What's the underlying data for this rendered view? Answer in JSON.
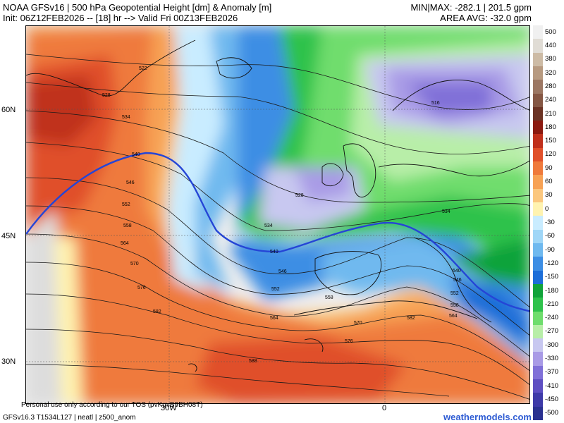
{
  "header": {
    "title": "NOAA GFSv16 | 500 hPa Geopotential Height [dm] & Anomaly [m]",
    "init": "Init: 06Z12FEB2026 -- [18] hr --> Valid Fri 00Z13FEB2026",
    "minmax": "MIN|MAX: -282.1 | 201.5 gpm",
    "area_avg": "AREA AVG: -32.0 gpm"
  },
  "axes": {
    "lat_labels": [
      "60N",
      "45N",
      "30N"
    ],
    "lon_labels": [
      "30W",
      "0"
    ]
  },
  "contour_labels": [
    "522",
    "528",
    "534",
    "540",
    "546",
    "552",
    "558",
    "564",
    "570",
    "576",
    "582",
    "588",
    "516",
    "528",
    "534",
    "540",
    "546",
    "552",
    "558",
    "564",
    "570",
    "576",
    "582",
    "534",
    "540",
    "546",
    "552",
    "558",
    "564"
  ],
  "colorbar": {
    "values": [
      "500",
      "440",
      "380",
      "320",
      "280",
      "240",
      "210",
      "180",
      "150",
      "120",
      "90",
      "60",
      "30",
      "0",
      "-30",
      "-60",
      "-90",
      "-120",
      "-150",
      "-180",
      "-210",
      "-240",
      "-270",
      "-300",
      "-330",
      "-370",
      "-410",
      "-450",
      "-500"
    ],
    "colors": [
      "#f0f0f0",
      "#e0dcd5",
      "#cdbba5",
      "#b79a80",
      "#9c7763",
      "#855744",
      "#6b3324",
      "#8b1a10",
      "#c0301c",
      "#e0502a",
      "#ef7a3c",
      "#f7a255",
      "#fbc77e",
      "#fff3b0",
      "#c9ecff",
      "#9fd6f7",
      "#6fb9ef",
      "#3d8ee4",
      "#1d6ed8",
      "#11a33a",
      "#2fc24c",
      "#6fdd6d",
      "#b8eea8",
      "#c8c8f0",
      "#a99be6",
      "#8070d8",
      "#5e4fc2",
      "#3e3aa8",
      "#2a3190"
    ]
  },
  "footer": {
    "tos": "Personal use only according to our TOS (pvKgvB9BH08T)",
    "model": "GFSv16.3 T1534L127 | neatl | z500_anom",
    "site": "weathermodels.com"
  }
}
